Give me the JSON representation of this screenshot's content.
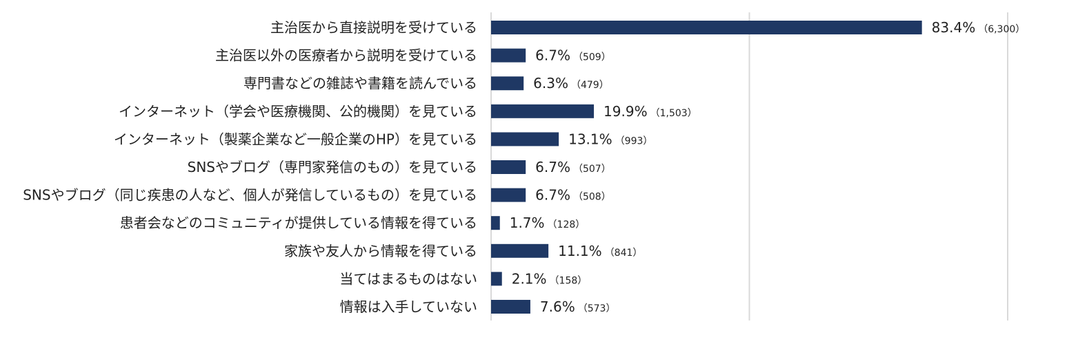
{
  "chart_data": {
    "type": "bar",
    "orientation": "horizontal",
    "categories": [
      "主治医から直接説明を受けている",
      "主治医以外の医療者から説明を受けている",
      "専門書などの雑誌や書籍を読んでいる",
      "インターネット（学会や医療機関、公的機関）を見ている",
      "インターネット（製薬企業など一般企業のHP）を見ている",
      "SNSやブログ（専門家発信のもの）を見ている",
      "SNSやブログ（同じ疾患の人など、個人が発信しているもの）を見ている",
      "患者会などのコミュニティが提供している情報を得ている",
      "家族や友人から情報を得ている",
      "当てはまるものはない",
      "情報は入手していない"
    ],
    "values": [
      83.4,
      6.7,
      6.3,
      19.9,
      13.1,
      6.7,
      6.7,
      1.7,
      11.1,
      2.1,
      7.6
    ],
    "value_labels": [
      "83.4%",
      "6.7%",
      "6.3%",
      "19.9%",
      "13.1%",
      "6.7%",
      "6.7%",
      "1.7%",
      "11.1%",
      "2.1%",
      "7.6%"
    ],
    "count_labels": [
      "（6,300）",
      "（509）",
      "（479）",
      "（1,503）",
      "（993）",
      "（507）",
      "（508）",
      "（128）",
      "（841）",
      "（158）",
      "（573）"
    ],
    "xlim": [
      0,
      100
    ],
    "grid": true,
    "legend": "none",
    "bar_color": "#1f3864",
    "grid_color": "#d9d9d9"
  }
}
